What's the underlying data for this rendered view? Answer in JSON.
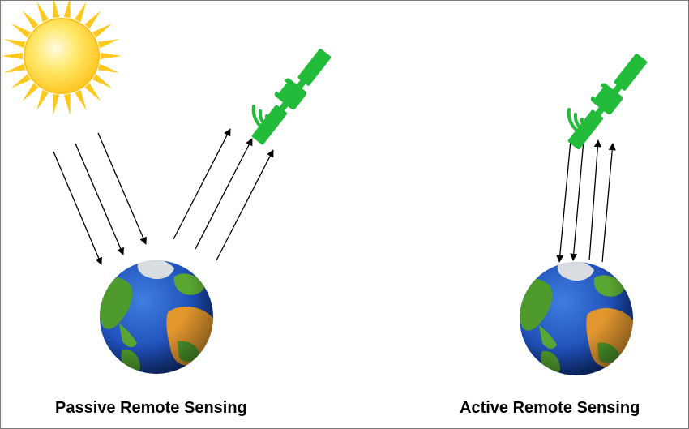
{
  "captions": {
    "passive": "Passive Remote Sensing",
    "active": "Active Remote Sensing"
  },
  "colors": {
    "satellite": "#22bb3a",
    "sun_core": "#ffd21f",
    "sun_rays": "#ffc81e",
    "ocean": "#1f4fb8",
    "land": "#4f9a2c",
    "desert": "#e2962e",
    "ice": "#d9dde2",
    "arrow": "#000000"
  },
  "icons": {
    "sun": "sun-icon",
    "satellite": "satellite-icon",
    "earth": "earth-globe-icon"
  }
}
